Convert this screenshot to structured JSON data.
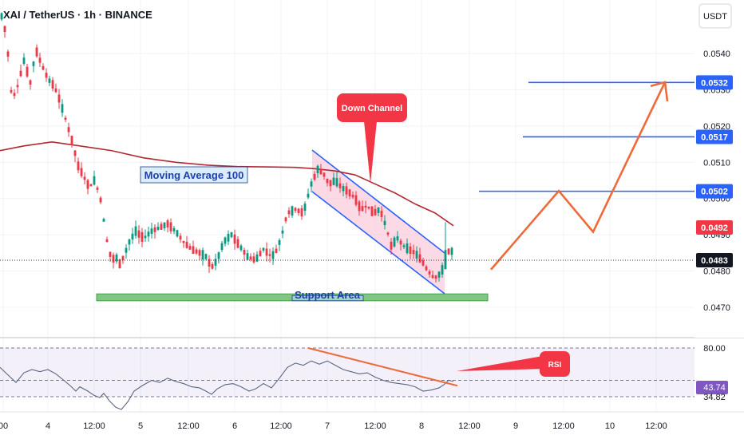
{
  "header": {
    "symbol": "XAI / TetherUS · 1h · BINANCE",
    "currency_label": "USDT"
  },
  "colors": {
    "up": "#089981",
    "down": "#f23645",
    "ma": "#b22833",
    "accent_blue": "#2962ff",
    "projection": "#ef6a3a",
    "support_fill": "#4caf50",
    "rsi_line": "#7e57c2"
  },
  "chart_data": [
    {
      "type": "candlestick",
      "title": "XAI / TetherUS · 1h · BINANCE",
      "ylabel": "USDT",
      "ylim": [
        0.0462,
        0.0557
      ],
      "y_ticks": [
        0.054,
        0.053,
        0.052,
        0.051,
        0.05,
        0.049,
        0.048,
        0.047
      ],
      "x_ticks": [
        "00",
        "4",
        "12:00",
        "5",
        "12:00",
        "6",
        "12:00",
        "7",
        "12:00",
        "8",
        "12:00",
        "9",
        "12:00",
        "10",
        "12:00"
      ],
      "last_price": 0.0483,
      "price_tags": [
        0.0532,
        0.0517,
        0.0502,
        0.0492,
        0.0483
      ],
      "target_levels": [
        0.0532,
        0.0517,
        0.0502
      ],
      "moving_average": {
        "name": "Moving Average 100",
        "values": [
          [
            0,
            0.05132
          ],
          [
            30,
            0.05145
          ],
          [
            65,
            0.05156
          ],
          [
            100,
            0.05145
          ],
          [
            140,
            0.05132
          ],
          [
            180,
            0.05112
          ],
          [
            220,
            0.051
          ],
          [
            260,
            0.05092
          ],
          [
            300,
            0.05088
          ],
          [
            340,
            0.05087
          ],
          [
            370,
            0.05086
          ],
          [
            395,
            0.05082
          ],
          [
            420,
            0.05076
          ],
          [
            445,
            0.05065
          ],
          [
            470,
            0.0504
          ],
          [
            495,
            0.05015
          ],
          [
            520,
            0.04985
          ],
          [
            545,
            0.0496
          ],
          [
            568,
            0.04925
          ]
        ]
      },
      "price_path": [
        [
          0,
          0.0552
        ],
        [
          8,
          0.0545
        ],
        [
          15,
          0.0527
        ],
        [
          22,
          0.0531
        ],
        [
          30,
          0.0538
        ],
        [
          38,
          0.0532
        ],
        [
          45,
          0.0541
        ],
        [
          52,
          0.0537
        ],
        [
          60,
          0.0533
        ],
        [
          68,
          0.0531
        ],
        [
          75,
          0.0527
        ],
        [
          82,
          0.0522
        ],
        [
          90,
          0.0516
        ],
        [
          98,
          0.0509
        ],
        [
          105,
          0.0506
        ],
        [
          112,
          0.0503
        ],
        [
          118,
          0.0505
        ],
        [
          125,
          0.0501
        ],
        [
          130,
          0.0494
        ],
        [
          135,
          0.0487
        ],
        [
          140,
          0.0483
        ],
        [
          145,
          0.0484
        ],
        [
          150,
          0.0482
        ],
        [
          155,
          0.0484
        ],
        [
          162,
          0.0488
        ],
        [
          170,
          0.0491
        ],
        [
          180,
          0.0489
        ],
        [
          190,
          0.0491
        ],
        [
          200,
          0.0492
        ],
        [
          210,
          0.0493
        ],
        [
          220,
          0.0491
        ],
        [
          230,
          0.0488
        ],
        [
          240,
          0.0486
        ],
        [
          250,
          0.0485
        ],
        [
          258,
          0.0484
        ],
        [
          265,
          0.0481
        ],
        [
          272,
          0.0483
        ],
        [
          280,
          0.0488
        ],
        [
          290,
          0.049
        ],
        [
          300,
          0.0487
        ],
        [
          310,
          0.0484
        ],
        [
          320,
          0.0483
        ],
        [
          330,
          0.0486
        ],
        [
          340,
          0.0484
        ],
        [
          345,
          0.0485
        ],
        [
          352,
          0.0489
        ],
        [
          360,
          0.0496
        ],
        [
          370,
          0.0497
        ],
        [
          380,
          0.0496
        ],
        [
          390,
          0.0504
        ],
        [
          398,
          0.0508
        ],
        [
          405,
          0.0507
        ],
        [
          412,
          0.0504
        ],
        [
          420,
          0.0505
        ],
        [
          428,
          0.0503
        ],
        [
          436,
          0.0502
        ],
        [
          445,
          0.05
        ],
        [
          452,
          0.0497
        ],
        [
          460,
          0.0498
        ],
        [
          468,
          0.0496
        ],
        [
          476,
          0.0497
        ],
        [
          484,
          0.0492
        ],
        [
          490,
          0.0487
        ],
        [
          498,
          0.0489
        ],
        [
          505,
          0.0487
        ],
        [
          512,
          0.0486
        ],
        [
          520,
          0.0485
        ],
        [
          528,
          0.0483
        ],
        [
          536,
          0.048
        ],
        [
          544,
          0.0478
        ],
        [
          550,
          0.0479
        ],
        [
          556,
          0.0481
        ],
        [
          560,
          0.0485
        ],
        [
          565,
          0.0486
        ],
        [
          570,
          0.0483
        ]
      ],
      "annotations": {
        "down_channel": "Down Channel",
        "moving_average_label": "Moving Average 100",
        "support_area": "Support Area",
        "support_range": [
          0.04718,
          0.04737
        ]
      },
      "projection_path": [
        [
          615,
          0.04804
        ],
        [
          700,
          0.05021
        ],
        [
          743,
          0.04908
        ],
        [
          833,
          0.05321
        ]
      ]
    },
    {
      "type": "line",
      "title": "RSI",
      "ylim": [
        25,
        90
      ],
      "levels": [
        80.0,
        46.31,
        43.74,
        34.82
      ],
      "rsi_label": "RSI",
      "series": [
        {
          "name": "RSI",
          "values": [
            [
              0,
              62
            ],
            [
              10,
              55
            ],
            [
              20,
              48
            ],
            [
              30,
              57
            ],
            [
              40,
              60
            ],
            [
              50,
              58
            ],
            [
              60,
              60
            ],
            [
              70,
              56
            ],
            [
              80,
              50
            ],
            [
              88,
              45
            ],
            [
              95,
              40
            ],
            [
              100,
              44
            ],
            [
              110,
              40
            ],
            [
              118,
              36
            ],
            [
              125,
              34
            ],
            [
              130,
              38
            ],
            [
              137,
              31
            ],
            [
              145,
              25
            ],
            [
              152,
              23
            ],
            [
              160,
              30
            ],
            [
              168,
              40
            ],
            [
              178,
              45
            ],
            [
              190,
              50
            ],
            [
              200,
              48
            ],
            [
              210,
              52
            ],
            [
              220,
              49
            ],
            [
              230,
              47
            ],
            [
              240,
              44
            ],
            [
              250,
              43
            ],
            [
              258,
              40
            ],
            [
              265,
              37
            ],
            [
              272,
              42
            ],
            [
              282,
              46
            ],
            [
              292,
              47
            ],
            [
              302,
              44
            ],
            [
              312,
              40
            ],
            [
              320,
              42
            ],
            [
              330,
              47
            ],
            [
              340,
              43
            ],
            [
              350,
              52
            ],
            [
              360,
              62
            ],
            [
              370,
              66
            ],
            [
              380,
              64
            ],
            [
              390,
              68
            ],
            [
              400,
              65
            ],
            [
              410,
              68
            ],
            [
              420,
              64
            ],
            [
              430,
              60
            ],
            [
              440,
              58
            ],
            [
              450,
              56
            ],
            [
              460,
              57
            ],
            [
              470,
              53
            ],
            [
              480,
              50
            ],
            [
              490,
              48
            ],
            [
              500,
              47
            ],
            [
              510,
              46
            ],
            [
              520,
              44
            ],
            [
              530,
              40
            ],
            [
              540,
              41
            ],
            [
              550,
              43
            ],
            [
              556,
              46
            ],
            [
              562,
              50
            ],
            [
              568,
              49
            ]
          ]
        }
      ],
      "divergence_line": [
        [
          386,
          80
        ],
        [
          573,
          45
        ]
      ]
    }
  ]
}
